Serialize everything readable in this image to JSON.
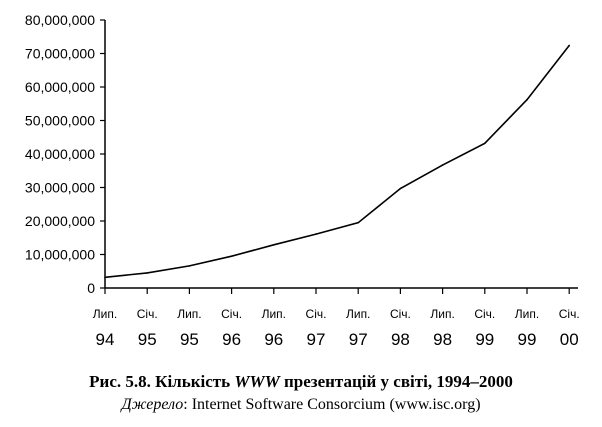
{
  "chart_data": {
    "type": "line",
    "y_ticks": [
      "0",
      "10,000,000",
      "20,000,000",
      "30,000,000",
      "40,000,000",
      "50,000,000",
      "60,000,000",
      "70,000,000",
      "80,000,000"
    ],
    "ylim": [
      0,
      80000000
    ],
    "grid": false,
    "categories": [
      {
        "month": "Лип.",
        "year": "94"
      },
      {
        "month": "Січ.",
        "year": "95"
      },
      {
        "month": "Лип.",
        "year": "95"
      },
      {
        "month": "Січ.",
        "year": "96"
      },
      {
        "month": "Лип.",
        "year": "96"
      },
      {
        "month": "Січ.",
        "year": "97"
      },
      {
        "month": "Лип.",
        "year": "97"
      },
      {
        "month": "Січ.",
        "year": "98"
      },
      {
        "month": "Лип.",
        "year": "98"
      },
      {
        "month": "Січ.",
        "year": "99"
      },
      {
        "month": "Лип.",
        "year": "99"
      },
      {
        "month": "Січ.",
        "year": "00"
      }
    ],
    "series": [
      {
        "values": [
          3200000,
          4500000,
          6600000,
          9500000,
          12900000,
          16100000,
          19500000,
          29700000,
          36700000,
          43200000,
          56200000,
          72400000
        ]
      }
    ]
  },
  "caption": {
    "prefix": "Рис. 5.8. Кількість ",
    "emphasis": "WWW",
    "suffix": " презентацій у світі, 1994–2000",
    "source_label": "Джерело",
    "source_text": ": Internet Software Consorcium (www.isc.org)"
  },
  "colors": {
    "line": "#000000",
    "axis": "#000000"
  }
}
